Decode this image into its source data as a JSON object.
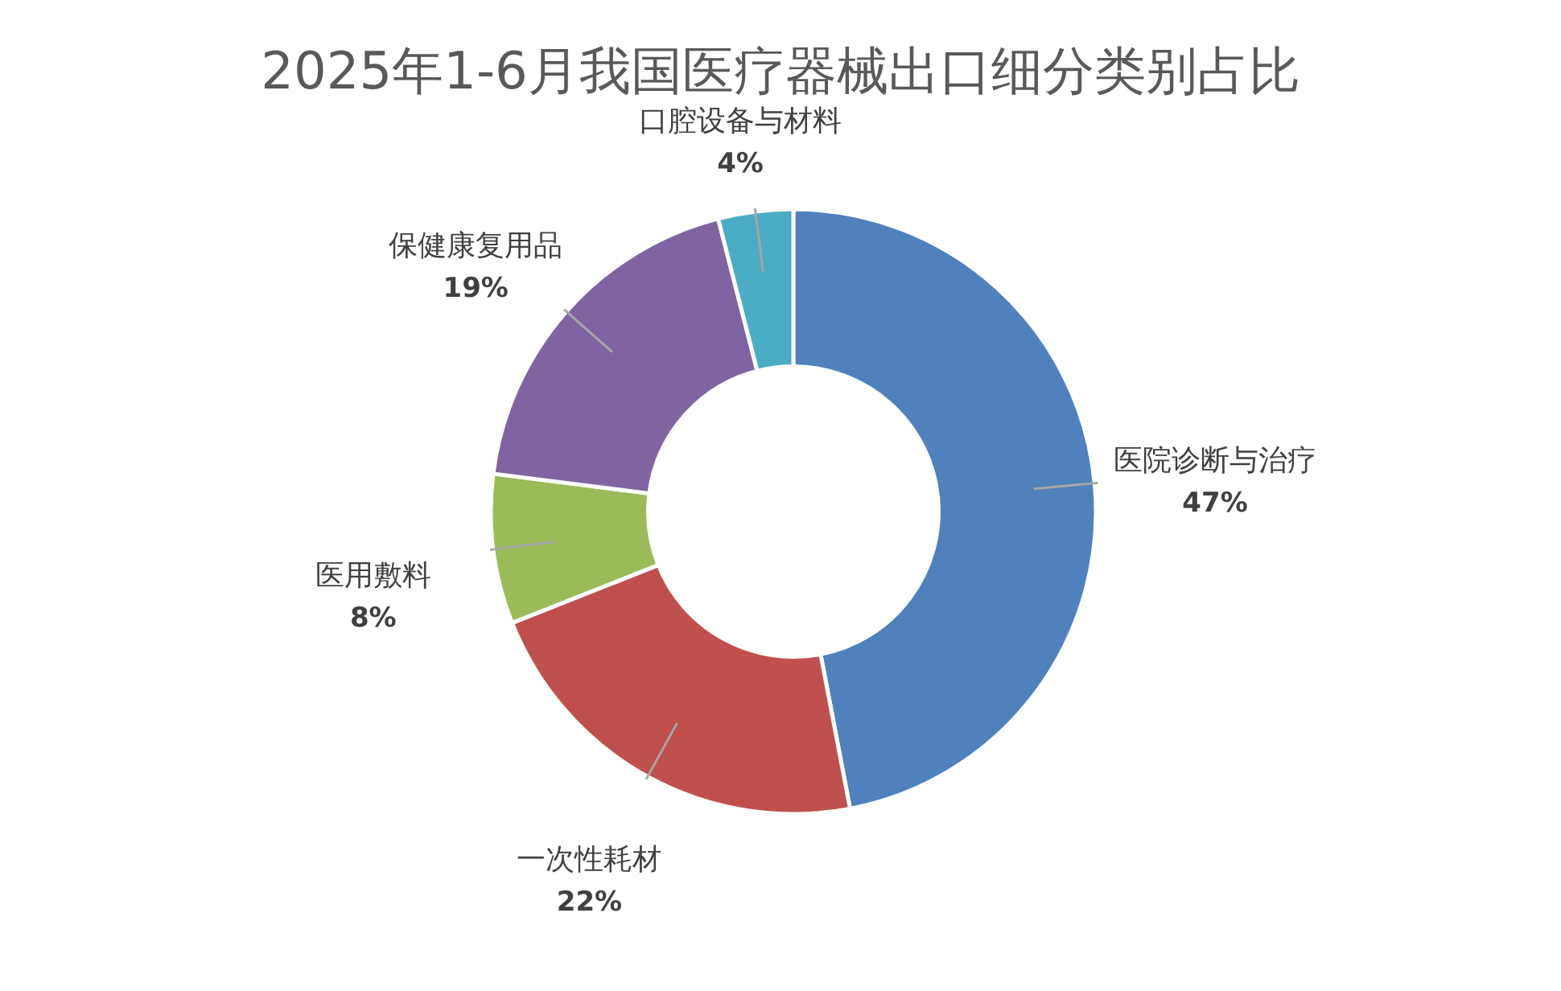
{
  "chart_data": {
    "type": "donut",
    "title": "2025年1-6月我国医疗器械出口细分类别占比",
    "categories": [
      "医院诊断与治疗",
      "一次性耗材",
      "医用敷料",
      "保健康复用品",
      "口腔设备与材料"
    ],
    "values": [
      47,
      22,
      8,
      19,
      4
    ],
    "colors": [
      "#4f81bd",
      "#c0504d",
      "#9bbb59",
      "#8064a2",
      "#4bacc6"
    ],
    "value_labels": [
      "47%",
      "22%",
      "8%",
      "19%",
      "4%"
    ]
  }
}
